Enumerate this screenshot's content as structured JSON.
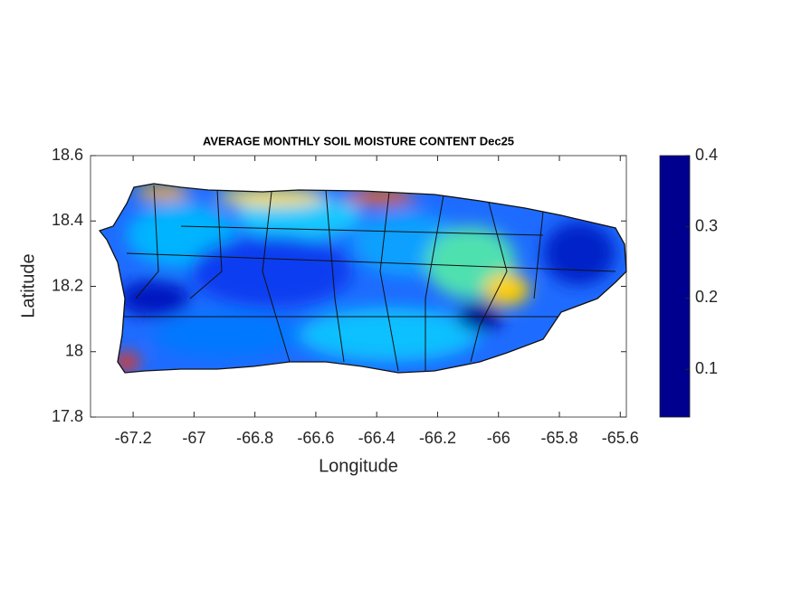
{
  "chart_data": {
    "type": "heatmap",
    "title": "AVERAGE MONTHLY SOIL MOISTURE CONTENT Dec25",
    "xlabel": "Longitude",
    "ylabel": "Latitude",
    "xlim": [
      -67.34,
      -65.58
    ],
    "xticks": [
      -67.2,
      -67,
      -66.8,
      -66.6,
      -66.4,
      -66.2,
      -66,
      -65.8,
      -65.6
    ],
    "ylim": [
      17.8,
      18.6
    ],
    "yticks": [
      17.8,
      18,
      18.2,
      18.4,
      18.6
    ],
    "colormap": "jet",
    "colormap_reversed": true,
    "clim": [
      0.033,
      0.4
    ],
    "cticks": [
      0.1,
      0.2,
      0.3,
      0.4
    ]
  }
}
